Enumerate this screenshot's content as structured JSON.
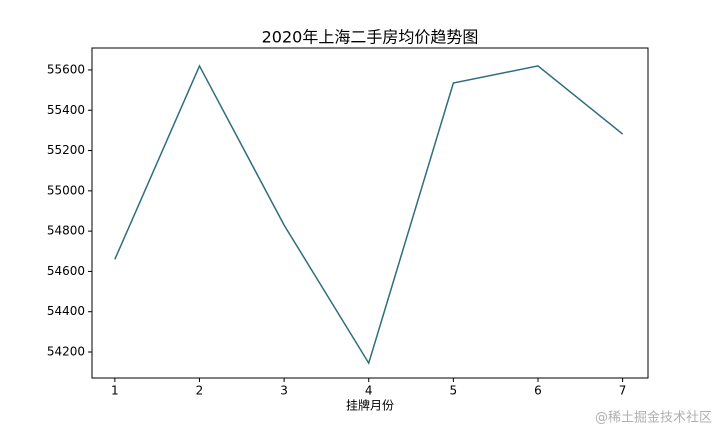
{
  "chart_data": {
    "type": "line",
    "title": "2020年上海二手房均价趋势图",
    "x_label": "挂牌月份",
    "x": [
      1,
      2,
      3,
      4,
      5,
      6,
      7
    ],
    "series": [
      {
        "name": "均价",
        "color": "#2e6e7e",
        "values": [
          54660,
          55620,
          54830,
          54145,
          55535,
          55620,
          55282
        ]
      }
    ],
    "xlim": [
      0.73,
      7.3
    ],
    "xticks": [
      1,
      2,
      3,
      4,
      5,
      6,
      7
    ],
    "ylim": [
      54071,
      55709
    ],
    "yticks": [
      54200,
      54400,
      54600,
      54800,
      55000,
      55200,
      55400,
      55600
    ],
    "grid": false
  },
  "watermark": "@稀土掘金技术社区"
}
